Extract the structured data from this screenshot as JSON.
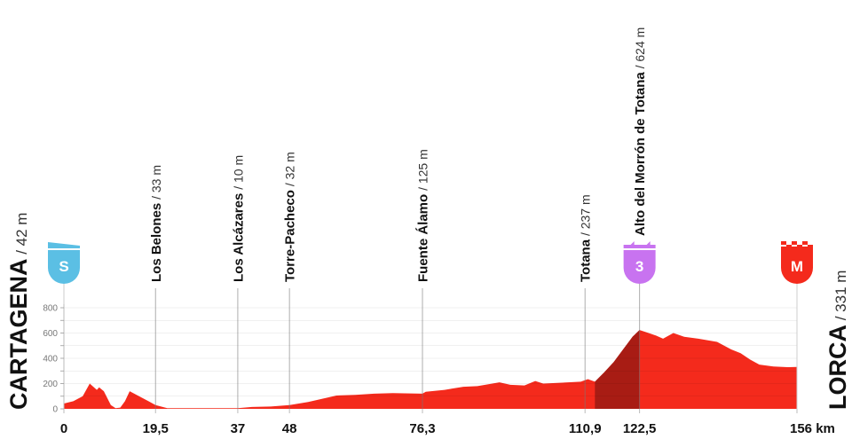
{
  "chart_data": {
    "type": "area",
    "xlabel": "",
    "ylabel": "",
    "x_unit": "km",
    "xlim": [
      0,
      156
    ],
    "ylim": [
      0,
      800
    ],
    "y_ticks": [
      "0",
      "200",
      "400",
      "600",
      "800"
    ],
    "x_ticks": [
      {
        "km": 0,
        "label": "0"
      },
      {
        "km": 19.5,
        "label": "19,5"
      },
      {
        "km": 37,
        "label": "37"
      },
      {
        "km": 48,
        "label": "48"
      },
      {
        "km": 76.3,
        "label": "76,3"
      },
      {
        "km": 110.9,
        "label": "110,9"
      },
      {
        "km": 122.5,
        "label": "122,5"
      },
      {
        "km": 156,
        "label": "156 km"
      }
    ],
    "profile": [
      [
        0,
        42
      ],
      [
        2,
        60
      ],
      [
        4,
        100
      ],
      [
        5.5,
        200
      ],
      [
        7,
        150
      ],
      [
        7.5,
        170
      ],
      [
        8.5,
        140
      ],
      [
        10,
        30
      ],
      [
        11,
        5
      ],
      [
        12,
        10
      ],
      [
        13,
        60
      ],
      [
        14,
        140
      ],
      [
        16,
        100
      ],
      [
        18,
        60
      ],
      [
        19.5,
        30
      ],
      [
        22,
        5
      ],
      [
        30,
        5
      ],
      [
        37,
        5
      ],
      [
        40,
        15
      ],
      [
        44,
        18
      ],
      [
        48,
        30
      ],
      [
        52,
        55
      ],
      [
        55,
        80
      ],
      [
        58,
        105
      ],
      [
        62,
        110
      ],
      [
        66,
        120
      ],
      [
        70,
        125
      ],
      [
        76.3,
        120
      ],
      [
        77,
        135
      ],
      [
        81,
        150
      ],
      [
        85,
        175
      ],
      [
        88,
        180
      ],
      [
        92.7,
        210
      ],
      [
        95,
        190
      ],
      [
        98,
        185
      ],
      [
        100.3,
        220
      ],
      [
        102,
        200
      ],
      [
        105,
        205
      ],
      [
        110,
        215
      ],
      [
        111.5,
        235
      ],
      [
        113,
        215
      ],
      [
        115,
        290
      ],
      [
        117,
        370
      ],
      [
        119,
        470
      ],
      [
        121,
        570
      ],
      [
        122.5,
        624
      ],
      [
        124,
        605
      ],
      [
        126,
        580
      ],
      [
        127.5,
        555
      ],
      [
        129.7,
        600
      ],
      [
        132,
        570
      ],
      [
        135,
        555
      ],
      [
        139,
        530
      ],
      [
        142,
        470
      ],
      [
        144,
        440
      ],
      [
        146,
        390
      ],
      [
        148,
        350
      ],
      [
        151,
        335
      ],
      [
        154,
        330
      ],
      [
        156,
        331
      ]
    ],
    "climb_segment": {
      "from_km": 113,
      "to_km": 122.5,
      "color": "#a81c14"
    },
    "fill_color": "#f42a1c",
    "grid": true,
    "points": [
      {
        "km": 19.5,
        "name": "Los Belones",
        "elev": " / 33 m"
      },
      {
        "km": 37,
        "name": "Los Alcázares",
        "elev": " / 10 m"
      },
      {
        "km": 48,
        "name": "Torre-Pacheco",
        "elev": " / 32 m"
      },
      {
        "km": 76.3,
        "name": "Fuente Álamo",
        "elev": " / 125 m"
      },
      {
        "km": 110.9,
        "name": "Totana",
        "elev": " / 237 m"
      },
      {
        "km": 122.5,
        "name": "Alto del Morrón de Totana",
        "elev": " / 624 m",
        "icon": "climb-cat-3-icon",
        "icon_text": "3",
        "icon_color": "#c873f0"
      }
    ],
    "start": {
      "name": "CARTAGENA",
      "elev": " / 42 m",
      "icon": "start-icon",
      "icon_text": "S",
      "icon_color": "#5bbfe4"
    },
    "finish": {
      "name": "LORCA",
      "elev": " / 331 m",
      "icon": "finish-icon",
      "icon_text": "M",
      "icon_color": "#f42a1c"
    }
  }
}
